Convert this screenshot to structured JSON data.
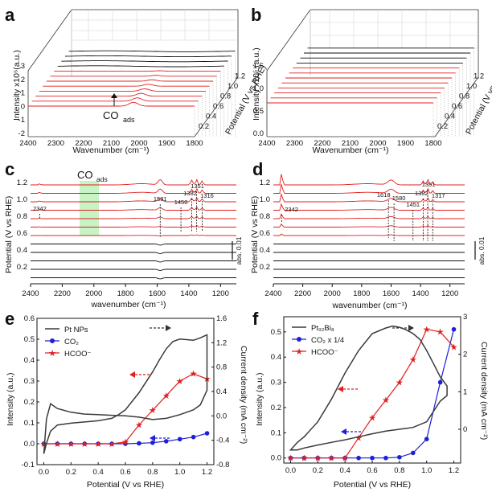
{
  "panels": {
    "a": {
      "label": "a",
      "ylabel": "Intensity x10⁵(a.u.)",
      "xlabel": "Wavenumber (cm⁻¹)",
      "zlabel": "Potential (V vs RHE)",
      "annotation": "CO",
      "annotation_sub": "ads",
      "y_ticks": [
        "-2",
        "-1",
        "0",
        "1",
        "2",
        "3"
      ],
      "x_ticks": [
        "2400",
        "2300",
        "2200",
        "2100",
        "2000",
        "1900",
        "1800"
      ],
      "z_ticks": [
        "0.2",
        "0.4",
        "0.6",
        "0.8",
        "1.0",
        "1.2"
      ]
    },
    "b": {
      "label": "b",
      "ylabel": "Intensity x10⁵ (a.u.)",
      "xlabel": "Wavenumber (cm⁻¹)",
      "zlabel": "Potential (V vs RHE)",
      "y_ticks": [
        "0.0",
        "0.5",
        "1.0",
        "1.5"
      ],
      "x_ticks": [
        "2400",
        "2300",
        "2200",
        "2100",
        "2000",
        "1900",
        "1800"
      ],
      "z_ticks": [
        "0.2",
        "0.4",
        "0.6",
        "0.8",
        "1.0",
        "1.2"
      ]
    },
    "c": {
      "label": "c",
      "ylabel": "Potential (V vs RHE)",
      "xlabel": "wavenumber (cm⁻¹)",
      "scale_label": "abs. 0.01",
      "co_label": "CO",
      "co_sub": "ads",
      "peaks": [
        "2342",
        "1581",
        "1450",
        "1382",
        "1351",
        "1316"
      ],
      "y_ticks": [
        "0.2",
        "0.4",
        "0.6",
        "0.8",
        "1.0",
        "1.2"
      ],
      "x_ticks": [
        "2400",
        "2200",
        "2000",
        "1800",
        "1600",
        "1400",
        "1200"
      ]
    },
    "d": {
      "label": "d",
      "ylabel": "Potential (V vs RHE)",
      "xlabel": "wavenumber (cm⁻¹)",
      "scale_label": "abs. 0.01",
      "peaks": [
        "2342",
        "1618",
        "1580",
        "1451",
        "1382",
        "1351",
        "1317"
      ],
      "y_ticks": [
        "0.2",
        "0.4",
        "0.6",
        "0.8",
        "1.0",
        "1.2"
      ],
      "x_ticks": [
        "2400",
        "2200",
        "2000",
        "1800",
        "1600",
        "1400",
        "1200"
      ]
    },
    "e": {
      "label": "e",
      "xlabel": "Potential (V vs RHE)",
      "ylabel_left": "Intensity (a.u.)",
      "ylabel_right": "Current density (mA cm⁻²)",
      "legend": [
        "Pt NPs",
        "CO₂",
        "HCOO⁻"
      ],
      "x_ticks": [
        "0.0",
        "0.2",
        "0.4",
        "0.6",
        "0.8",
        "1.0",
        "1.2"
      ],
      "y_ticks_left": [
        "-0.1",
        "0.0",
        "0.1",
        "0.2",
        "0.3",
        "0.4",
        "0.5",
        "0.6"
      ],
      "y_ticks_right": [
        "-0.8",
        "-0.4",
        "0.0",
        "0.4",
        "0.8",
        "1.2",
        "1.6"
      ]
    },
    "f": {
      "label": "f",
      "xlabel": "Potential (V vs RHE)",
      "ylabel_left": "Intensity (a.u.)",
      "ylabel_right": "Current density (mA cm⁻²)",
      "legend": [
        "Pt₉₂Bi₈",
        "CO₂ x 1/4",
        "HCOO⁻"
      ],
      "x_ticks": [
        "0.0",
        "0.2",
        "0.4",
        "0.6",
        "0.8",
        "1.0",
        "1.2"
      ],
      "y_ticks_left": [
        "0.0",
        "0.1",
        "0.2",
        "0.3",
        "0.4",
        "0.5"
      ],
      "y_ticks_right": [
        "0",
        "1",
        "2",
        "3"
      ]
    }
  },
  "chart_data": [
    {
      "panel": "e",
      "type": "line",
      "xlim": [
        -0.05,
        1.25
      ],
      "ylim_left": [
        -0.1,
        0.6
      ],
      "ylim_right": [
        -0.8,
        1.6
      ],
      "series": [
        {
          "name": "CO₂",
          "axis": "left",
          "color": "#1f1fd6",
          "x": [
            0.0,
            0.1,
            0.2,
            0.3,
            0.4,
            0.5,
            0.6,
            0.7,
            0.8,
            0.9,
            1.0,
            1.1,
            1.2
          ],
          "y": [
            0.0,
            0.0,
            0.0,
            0.0,
            0.0,
            0.0,
            0.0,
            0.002,
            0.005,
            0.012,
            0.022,
            0.032,
            0.05
          ]
        },
        {
          "name": "HCOO⁻",
          "axis": "left",
          "color": "#e02020",
          "x": [
            0.0,
            0.1,
            0.2,
            0.3,
            0.4,
            0.5,
            0.6,
            0.7,
            0.8,
            0.9,
            1.0,
            1.1,
            1.2
          ],
          "y": [
            0.0,
            0.0,
            0.0,
            0.0,
            0.0,
            0.0,
            0.008,
            0.09,
            0.16,
            0.23,
            0.3,
            0.335,
            0.31
          ]
        },
        {
          "name": "Pt NPs",
          "axis": "right",
          "color": "#3a3a3a",
          "closed": true,
          "x": [
            0.0,
            0.02,
            0.05,
            0.1,
            0.2,
            0.3,
            0.4,
            0.5,
            0.55,
            0.6,
            0.7,
            0.8,
            0.85,
            0.9,
            0.95,
            1.0,
            1.05,
            1.1,
            1.15,
            1.2,
            1.2,
            1.15,
            1.1,
            1.0,
            0.9,
            0.8,
            0.7,
            0.6,
            0.5,
            0.4,
            0.3,
            0.2,
            0.1,
            0.05,
            0.02,
            0.0
          ],
          "y": [
            -0.62,
            -0.45,
            -0.25,
            -0.15,
            -0.12,
            -0.1,
            -0.08,
            -0.04,
            0.02,
            0.1,
            0.38,
            0.72,
            0.92,
            1.1,
            1.22,
            1.26,
            1.25,
            1.24,
            1.28,
            1.33,
            0.42,
            0.18,
            0.1,
            0.02,
            -0.04,
            -0.06,
            -0.02,
            0.0,
            0.01,
            0.02,
            0.03,
            0.06,
            0.12,
            0.2,
            -0.05,
            -0.62
          ]
        }
      ]
    },
    {
      "panel": "f",
      "type": "line",
      "xlim": [
        -0.05,
        1.25
      ],
      "ylim_left": [
        -0.02,
        0.56
      ],
      "ylim_right": [
        -0.9,
        3.0
      ],
      "series": [
        {
          "name": "CO₂ x 1/4",
          "axis": "left",
          "color": "#1f1fd6",
          "x": [
            0.0,
            0.1,
            0.2,
            0.3,
            0.4,
            0.5,
            0.6,
            0.7,
            0.8,
            0.9,
            1.0,
            1.1,
            1.2
          ],
          "y": [
            0.0,
            0.0,
            0.0,
            0.0,
            0.0,
            0.0,
            0.0,
            0.0,
            0.003,
            0.02,
            0.075,
            0.3,
            0.51
          ]
        },
        {
          "name": "HCOO⁻",
          "axis": "left",
          "color": "#e02020",
          "x": [
            0.0,
            0.1,
            0.2,
            0.3,
            0.4,
            0.5,
            0.6,
            0.7,
            0.8,
            0.9,
            1.0,
            1.1,
            1.2
          ],
          "y": [
            0.0,
            0.0,
            0.0,
            0.0,
            0.0,
            0.08,
            0.16,
            0.23,
            0.3,
            0.39,
            0.51,
            0.5,
            0.44
          ]
        },
        {
          "name": "Pt₉₂Bi₈",
          "axis": "right",
          "color": "#3a3a3a",
          "closed": true,
          "x": [
            0.0,
            0.05,
            0.1,
            0.2,
            0.3,
            0.4,
            0.5,
            0.6,
            0.7,
            0.75,
            0.8,
            0.85,
            0.9,
            0.95,
            1.0,
            1.05,
            1.1,
            1.15,
            1.15,
            1.1,
            1.0,
            0.9,
            0.8,
            0.7,
            0.6,
            0.5,
            0.4,
            0.3,
            0.2,
            0.1,
            0.05,
            0.0
          ],
          "y": [
            -0.55,
            -0.35,
            -0.2,
            0.2,
            0.8,
            1.5,
            2.1,
            2.55,
            2.7,
            2.75,
            2.72,
            2.65,
            2.55,
            2.4,
            2.1,
            1.75,
            1.4,
            1.15,
            0.9,
            0.75,
            0.2,
            0.05,
            0.0,
            -0.05,
            -0.12,
            -0.2,
            -0.28,
            -0.35,
            -0.42,
            -0.5,
            -0.55,
            -0.55
          ]
        }
      ]
    }
  ]
}
